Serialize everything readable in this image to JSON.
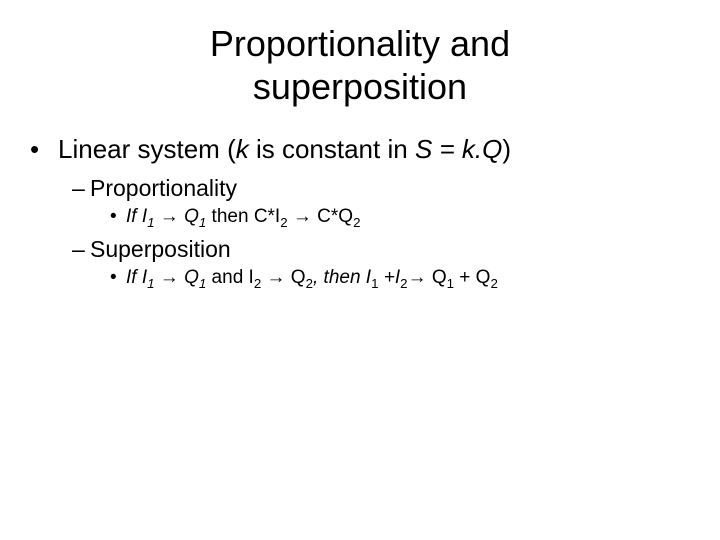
{
  "title_line1": "Proportionality and",
  "title_line2": "superposition",
  "l1_pre": "Linear system (",
  "l1_k": "k",
  "l1_mid": " is constant in ",
  "l1_s": "S",
  "l1_eq": " = ",
  "l1_kq": "k.Q",
  "l1_close": ")",
  "prop_label": "Proportionality",
  "super_label": "Superposition",
  "p_if": "If  I",
  "p_arrow1": " → Q",
  "p_then": " then C*I",
  "p_arrow2": " → C*Q",
  "s_if": "If  I",
  "s_arrow1": " → Q",
  "s_and": " and I",
  "s_arrow2": " → Q",
  "s_then": ", then  I",
  "s_plus1": " +I",
  "s_arrow3": "→ Q",
  "s_plus2": " + Q",
  "sub1": "1",
  "sub2": "2",
  "colors": {
    "text": "#000000",
    "background": "#ffffff"
  },
  "fontsizes": {
    "title": 36,
    "level1": 26,
    "level2": 23,
    "level3": 19
  }
}
